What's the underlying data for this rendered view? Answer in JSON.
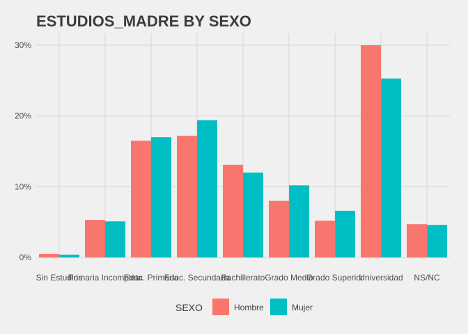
{
  "chart_data": {
    "type": "bar",
    "title": "ESTUDIOS_MADRE BY SEXO",
    "xlabel": "",
    "ylabel": "",
    "categories": [
      "Sin Estudios",
      "Primaria Incompleta",
      "Educ. Primaria",
      "Educ. Secundaria",
      "Bachillerato",
      "Grado Medio",
      "Grado Superior",
      "Universidad",
      "NS/NC"
    ],
    "series": [
      {
        "name": "Hombre",
        "color": "#F8766D",
        "values": [
          0.5,
          5.3,
          16.5,
          17.2,
          13.1,
          8.0,
          5.2,
          30.0,
          4.7
        ]
      },
      {
        "name": "Mujer",
        "color": "#00BFC4",
        "values": [
          0.4,
          5.1,
          17.0,
          19.4,
          12.0,
          10.2,
          6.6,
          25.3,
          4.6
        ]
      }
    ],
    "ylim": [
      0,
      30
    ],
    "yticks": [
      0,
      10,
      20,
      30
    ],
    "ytick_labels": [
      "0%",
      "10%",
      "20%",
      "30%"
    ],
    "grid": true,
    "legend": {
      "title": "SEXO",
      "position": "bottom"
    }
  }
}
